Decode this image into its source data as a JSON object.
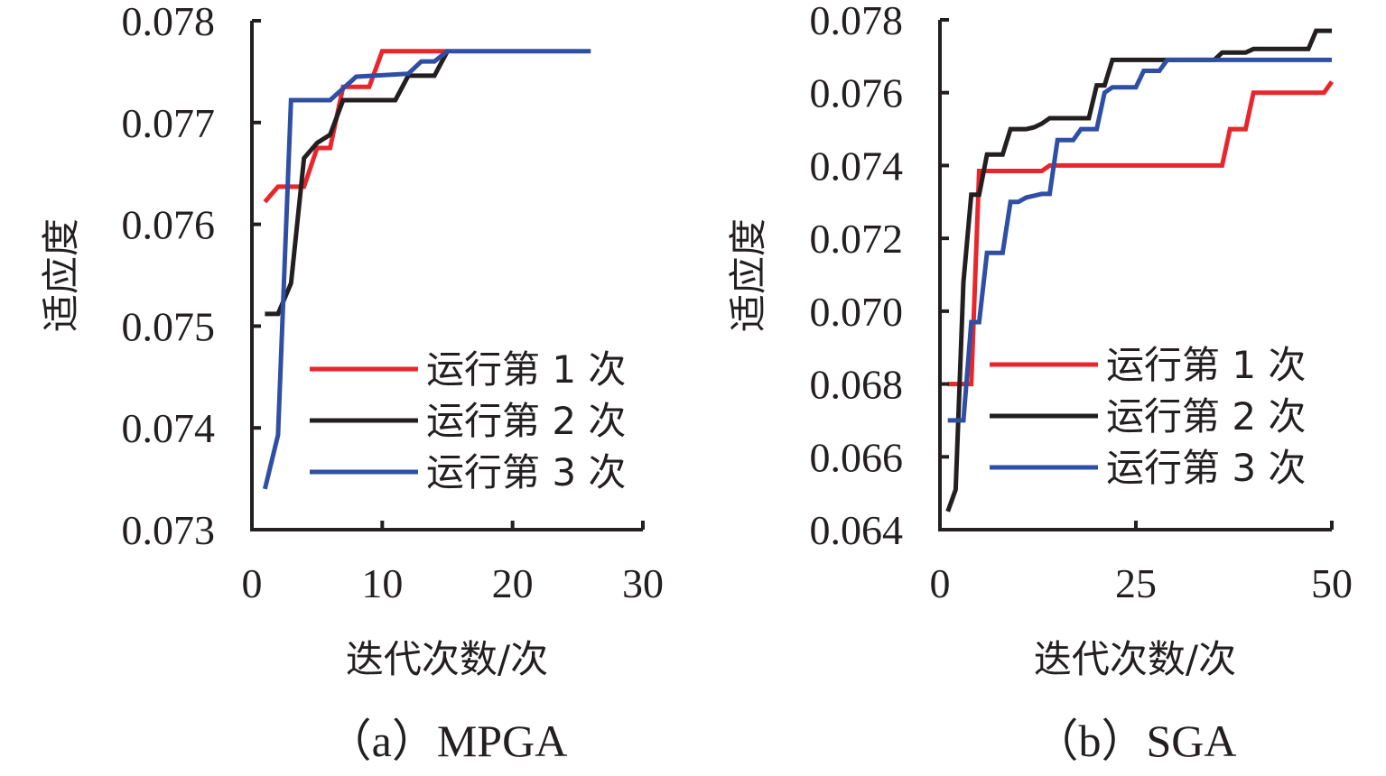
{
  "chart_data": [
    {
      "type": "line",
      "title": "（a）MPGA",
      "xlabel": "迭代次数/次",
      "ylabel": "适应度",
      "xlim": [
        0,
        30
      ],
      "ylim": [
        0.073,
        0.078
      ],
      "xticks": [
        0,
        10,
        20,
        30
      ],
      "xtick_labels": [
        "0",
        "10",
        "20",
        "30"
      ],
      "yticks": [
        0.073,
        0.074,
        0.075,
        0.076,
        0.077,
        0.078
      ],
      "ytick_labels": [
        "0.073",
        "0.074",
        "0.075",
        "0.076",
        "0.077",
        "0.078"
      ],
      "grid": false,
      "legend_position": "lower-right",
      "series": [
        {
          "name": "运行第 1 次",
          "color": "#e8262b",
          "x": [
            1,
            2,
            4,
            5,
            6,
            7,
            9,
            10,
            15
          ],
          "y": [
            0.07622,
            0.07637,
            0.07637,
            0.07675,
            0.07675,
            0.07735,
            0.07735,
            0.0777,
            0.0777
          ]
        },
        {
          "name": "运行第 2 次",
          "color": "#231f20",
          "x": [
            1,
            2,
            3,
            4,
            5,
            6,
            7,
            11,
            12,
            14,
            15
          ],
          "y": [
            0.07512,
            0.07512,
            0.07542,
            0.07665,
            0.0768,
            0.07688,
            0.07722,
            0.07722,
            0.07746,
            0.07746,
            0.0777
          ]
        },
        {
          "name": "运行第 3 次",
          "color": "#2e4fa3",
          "x": [
            1,
            2,
            3,
            6,
            8,
            12,
            13,
            14,
            15,
            26
          ],
          "y": [
            0.0734,
            0.07393,
            0.07722,
            0.07722,
            0.07745,
            0.07748,
            0.0776,
            0.0776,
            0.0777,
            0.0777
          ]
        }
      ]
    },
    {
      "type": "line",
      "title": "（b）SGA",
      "xlabel": "迭代次数/次",
      "ylabel": "适应度",
      "xlim": [
        0,
        50
      ],
      "ylim": [
        0.064,
        0.078
      ],
      "xticks": [
        0,
        25,
        50
      ],
      "xtick_labels": [
        "0",
        "25",
        "50"
      ],
      "yticks": [
        0.064,
        0.066,
        0.068,
        0.07,
        0.072,
        0.074,
        0.076,
        0.078
      ],
      "ytick_labels": [
        "0.064",
        "0.066",
        "0.068",
        "0.070",
        "0.072",
        "0.074",
        "0.076",
        "0.078"
      ],
      "grid": false,
      "legend_position": "lower-right",
      "series": [
        {
          "name": "运行第 1 次",
          "color": "#e8262b",
          "x": [
            1,
            4,
            5,
            13,
            14,
            36,
            37,
            39,
            40,
            49,
            50
          ],
          "y": [
            0.068,
            0.068,
            0.07385,
            0.07385,
            0.074,
            0.074,
            0.075,
            0.075,
            0.076,
            0.076,
            0.0763
          ]
        },
        {
          "name": "运行第 2 次",
          "color": "#231f20",
          "x": [
            1,
            2,
            3,
            4,
            5,
            6,
            8,
            9,
            11,
            12,
            13,
            14,
            19,
            20,
            21,
            22,
            35,
            36,
            39,
            40,
            47,
            48,
            50
          ],
          "y": [
            0.0645,
            0.0651,
            0.0708,
            0.0732,
            0.0732,
            0.0743,
            0.0743,
            0.075,
            0.075,
            0.07505,
            0.07515,
            0.0753,
            0.0753,
            0.0762,
            0.0762,
            0.0769,
            0.0769,
            0.0771,
            0.0771,
            0.0772,
            0.0772,
            0.0777,
            0.0777
          ]
        },
        {
          "name": "运行第 3 次",
          "color": "#2e4fa3",
          "x": [
            1,
            3,
            4,
            5,
            6,
            8,
            9,
            10,
            11,
            13,
            14,
            15,
            17,
            18,
            20,
            21,
            22,
            25,
            26,
            28,
            29,
            50
          ],
          "y": [
            0.067,
            0.067,
            0.0697,
            0.0697,
            0.0716,
            0.0716,
            0.073,
            0.073,
            0.07312,
            0.07322,
            0.07322,
            0.0747,
            0.0747,
            0.075,
            0.075,
            0.076,
            0.07615,
            0.07615,
            0.0766,
            0.0766,
            0.0769,
            0.0769
          ]
        }
      ]
    }
  ]
}
